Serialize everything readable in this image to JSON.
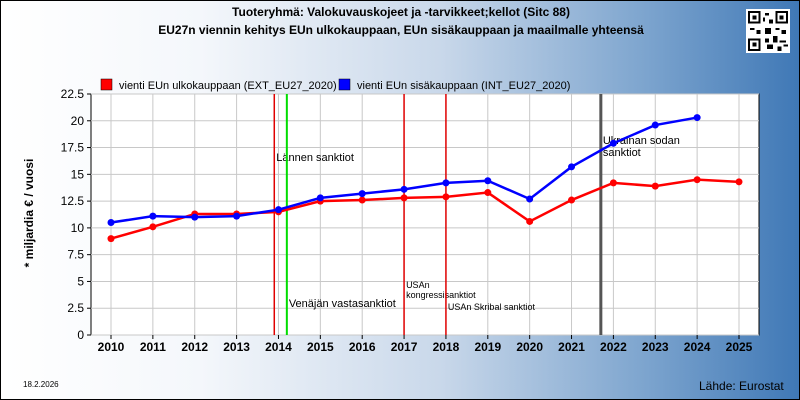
{
  "title_line1": "Tuoteryhmä: Valokuvauskojeet ja -tarvikkeet;kellot (Sitc 88)",
  "title_line2": "EU27n viennin kehitys EUn ulkokauppaan, EUn sisäkauppaan ja maailmalle yhteensä",
  "date": "18.2.2026",
  "source": "Lähde: Eurostat",
  "colors": {
    "ext": "#ff0000",
    "int": "#0000ff",
    "red_vline": "#e00000",
    "green_vline": "#00dd00",
    "gray_vline": "#555555"
  },
  "chart_data": {
    "type": "line",
    "ylabel": "* miljardia € / vuosi",
    "ylim": [
      0,
      22.5
    ],
    "yticks": [
      "0",
      "2.5",
      "5",
      "7.5",
      "10",
      "12.5",
      "15",
      "17.5",
      "20",
      "22.5"
    ],
    "categories": [
      "2010",
      "2011",
      "2012",
      "2013",
      "2014",
      "2015",
      "2016",
      "2017",
      "2018",
      "2019",
      "2020",
      "2021",
      "2022",
      "2023",
      "2024",
      "2025"
    ],
    "grid": true,
    "legend": "top",
    "series": [
      {
        "name": "vienti EUn ulkokauppaan (EXT_EU27_2020)",
        "color": "#ff0000",
        "values": [
          9.0,
          10.1,
          11.3,
          11.3,
          11.5,
          12.5,
          12.6,
          12.8,
          12.9,
          13.3,
          10.6,
          12.6,
          14.2,
          13.9,
          14.5,
          14.3
        ]
      },
      {
        "name": "vienti EUn sisäkauppaan (INT_EU27_2020)",
        "color": "#0000ff",
        "values": [
          10.5,
          11.1,
          11.0,
          11.1,
          11.7,
          12.8,
          13.2,
          13.6,
          14.2,
          14.4,
          12.7,
          15.7,
          17.9,
          19.6,
          20.3,
          null
        ]
      }
    ],
    "annotations": [
      {
        "x": 2013.9,
        "color": "red",
        "label": "Lännen sanktiot"
      },
      {
        "x": 2014.2,
        "color": "green",
        "label": "Venäjän vastasanktiot"
      },
      {
        "x": 2017.0,
        "color": "red",
        "label": "USAn kongressisanktiot"
      },
      {
        "x": 2018.0,
        "color": "red",
        "label": "USAn Skribal sanktiot"
      },
      {
        "x": 2021.7,
        "color": "gray",
        "label": "Ukrainan sodan sanktiot"
      }
    ]
  }
}
